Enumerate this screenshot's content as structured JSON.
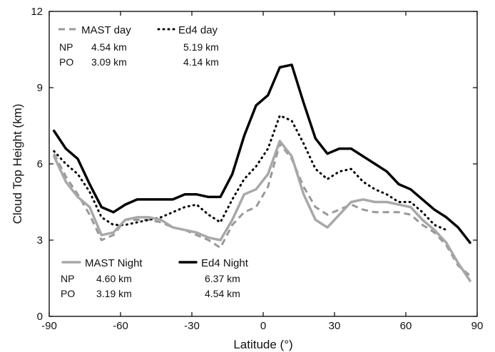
{
  "chart_data": {
    "type": "line",
    "xlabel": "Latitude (°)",
    "ylabel": "Cloud Top Height (km)",
    "xlim": [
      -90,
      90
    ],
    "ylim": [
      0,
      12
    ],
    "xticks": [
      -90,
      -60,
      -30,
      0,
      30,
      60,
      90
    ],
    "xtick_labels": [
      "-90",
      "-60",
      "-30",
      "0",
      "30",
      "60",
      "90"
    ],
    "yticks": [
      0,
      3,
      6,
      9,
      12
    ],
    "ytick_labels": [
      "0",
      "3",
      "6",
      "9",
      "12"
    ],
    "grid": false,
    "legends": {
      "day": {
        "placement": "top-left",
        "entries": [
          "MAST day",
          "Ed4 day"
        ],
        "stats": [
          {
            "region": "NP",
            "values": [
              "4.54 km",
              "5.19 km"
            ]
          },
          {
            "region": "PO",
            "values": [
              "3.09 km",
              "4.14 km"
            ]
          }
        ]
      },
      "night": {
        "placement": "bottom-left",
        "entries": [
          "MAST Night",
          "Ed4 Night"
        ],
        "stats": [
          {
            "region": "NP",
            "values": [
              "4.60 km",
              "6.37 km"
            ]
          },
          {
            "region": "PO",
            "values": [
              "3.19 km",
              "4.54 km"
            ]
          }
        ]
      }
    },
    "series": [
      {
        "name": "MAST day",
        "color": "#999999",
        "style": "dashed",
        "x": [
          -88,
          -83,
          -78,
          -73,
          -68,
          -63,
          -58,
          -53,
          -48,
          -43,
          -38,
          -33,
          -28,
          -23,
          -18,
          -13,
          -8,
          -3,
          2,
          7,
          12,
          17,
          22,
          27,
          32,
          37,
          42,
          47,
          52,
          57,
          62,
          67,
          72,
          77,
          82,
          87
        ],
        "y": [
          6.4,
          5.5,
          4.8,
          4.0,
          3.0,
          3.2,
          3.8,
          3.8,
          3.8,
          3.7,
          3.5,
          3.4,
          3.2,
          3.0,
          2.7,
          3.6,
          4.1,
          4.3,
          5.1,
          6.8,
          6.2,
          5.1,
          4.3,
          4.0,
          4.2,
          4.4,
          4.2,
          4.1,
          4.1,
          4.1,
          4.0,
          3.6,
          3.3,
          2.8,
          2.0,
          1.6
        ]
      },
      {
        "name": "Ed4 day",
        "color": "#000000",
        "style": "dotted",
        "x": [
          -88,
          -83,
          -78,
          -73,
          -68,
          -63,
          -58,
          -53,
          -48,
          -43,
          -38,
          -33,
          -28,
          -23,
          -18,
          -13,
          -8,
          -3,
          2,
          7,
          12,
          17,
          22,
          27,
          32,
          37,
          42,
          47,
          52,
          57,
          62,
          67,
          72,
          77
        ],
        "y": [
          6.5,
          6.0,
          5.6,
          4.9,
          3.9,
          3.6,
          3.6,
          3.7,
          3.8,
          3.9,
          4.1,
          4.3,
          4.4,
          4.0,
          3.7,
          4.6,
          5.4,
          5.9,
          6.6,
          7.9,
          7.7,
          6.8,
          5.8,
          5.4,
          5.7,
          5.8,
          5.3,
          5.0,
          4.8,
          4.5,
          4.5,
          4.1,
          3.6,
          3.4
        ]
      },
      {
        "name": "MAST Night",
        "color": "#a8a8a8",
        "style": "solid",
        "x": [
          -88,
          -83,
          -78,
          -73,
          -68,
          -63,
          -58,
          -53,
          -48,
          -43,
          -38,
          -33,
          -28,
          -23,
          -18,
          -13,
          -8,
          -3,
          2,
          7,
          12,
          17,
          22,
          27,
          32,
          37,
          42,
          47,
          52,
          57,
          62,
          67,
          72,
          77,
          82,
          87
        ],
        "y": [
          6.3,
          5.3,
          4.7,
          4.3,
          3.2,
          3.3,
          3.8,
          3.9,
          3.9,
          3.8,
          3.5,
          3.4,
          3.3,
          3.1,
          3.0,
          3.8,
          4.8,
          5.0,
          5.6,
          6.9,
          6.3,
          4.8,
          3.8,
          3.5,
          4.0,
          4.5,
          4.6,
          4.5,
          4.5,
          4.4,
          4.3,
          3.8,
          3.4,
          2.9,
          2.1,
          1.4
        ]
      },
      {
        "name": "Ed4 Night",
        "color": "#000000",
        "style": "solid",
        "x": [
          -88,
          -83,
          -78,
          -73,
          -68,
          -63,
          -58,
          -53,
          -48,
          -43,
          -38,
          -33,
          -28,
          -23,
          -18,
          -13,
          -8,
          -3,
          2,
          7,
          12,
          17,
          22,
          27,
          32,
          37,
          42,
          47,
          52,
          57,
          62,
          67,
          72,
          77,
          82,
          87
        ],
        "y": [
          7.3,
          6.6,
          6.2,
          5.2,
          4.3,
          4.1,
          4.4,
          4.6,
          4.6,
          4.6,
          4.6,
          4.8,
          4.8,
          4.7,
          4.7,
          5.6,
          7.1,
          8.3,
          8.7,
          9.8,
          9.9,
          8.4,
          7.0,
          6.4,
          6.6,
          6.6,
          6.3,
          6.0,
          5.7,
          5.2,
          5.0,
          4.6,
          4.2,
          3.9,
          3.5,
          2.9
        ]
      }
    ]
  }
}
